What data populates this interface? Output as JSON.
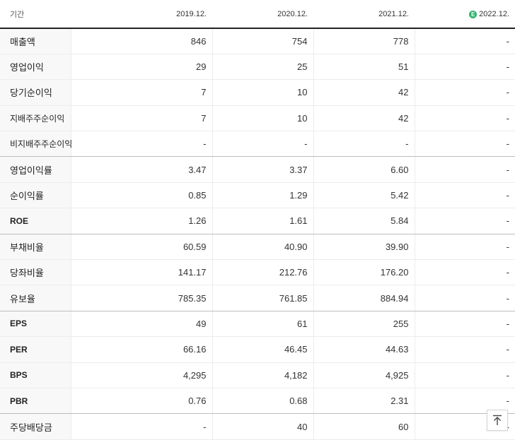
{
  "table": {
    "header": {
      "label": "기간",
      "columns": [
        "2019.12.",
        "2020.12.",
        "2021.12.",
        "2022.12."
      ],
      "estimate_badge": "E"
    },
    "rows": [
      {
        "label": "매출액",
        "values": [
          "846",
          "754",
          "778",
          "-"
        ]
      },
      {
        "label": "영업이익",
        "values": [
          "29",
          "25",
          "51",
          "-"
        ]
      },
      {
        "label": "당기순이익",
        "values": [
          "7",
          "10",
          "42",
          "-"
        ]
      },
      {
        "label": "지배주주순이익",
        "values": [
          "7",
          "10",
          "42",
          "-"
        ]
      },
      {
        "label": "비지배주주순이익",
        "values": [
          "-",
          "-",
          "-",
          "-"
        ]
      },
      {
        "label": "영업이익률",
        "values": [
          "3.47",
          "3.37",
          "6.60",
          "-"
        ]
      },
      {
        "label": "순이익률",
        "values": [
          "0.85",
          "1.29",
          "5.42",
          "-"
        ]
      },
      {
        "label": "ROE",
        "values": [
          "1.26",
          "1.61",
          "5.84",
          "-"
        ]
      },
      {
        "label": "부채비율",
        "values": [
          "60.59",
          "40.90",
          "39.90",
          "-"
        ]
      },
      {
        "label": "당좌비율",
        "values": [
          "141.17",
          "212.76",
          "176.20",
          "-"
        ]
      },
      {
        "label": "유보율",
        "values": [
          "785.35",
          "761.85",
          "884.94",
          "-"
        ]
      },
      {
        "label": "EPS",
        "values": [
          "49",
          "61",
          "255",
          "-"
        ]
      },
      {
        "label": "PER",
        "values": [
          "66.16",
          "46.45",
          "44.63",
          "-"
        ]
      },
      {
        "label": "BPS",
        "values": [
          "4,295",
          "4,182",
          "4,925",
          "-"
        ]
      },
      {
        "label": "PBR",
        "values": [
          "0.76",
          "0.68",
          "2.31",
          "-"
        ]
      },
      {
        "label": "주당배당금",
        "values": [
          "-",
          "40",
          "60",
          "-"
        ]
      }
    ]
  },
  "scroll_top_icon": "arrow-up-to-top-icon",
  "colors": {
    "estimate_badge": "#2fb36b",
    "label_column_bg": "#f8f8f8",
    "header_rule": "#222222"
  }
}
